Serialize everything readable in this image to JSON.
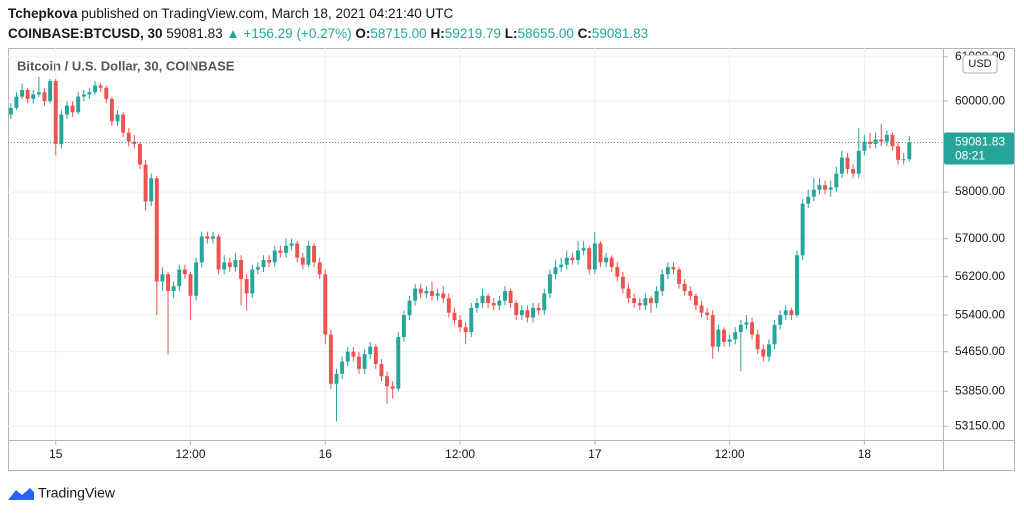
{
  "header": {
    "author": "Tchepkova",
    "published": "published on TradingView.com, March 18, 2021 04:21:40 UTC",
    "symbol": "COINBASE:BTCUSD, 30",
    "last": "59081.83",
    "change": "+156.29 (+0.27%)",
    "o_label": "O:",
    "o": "58715.00",
    "h_label": "H:",
    "h": "59219.79",
    "l_label": "L:",
    "l": "58655.00",
    "c_label": "C:",
    "c": "59081.83"
  },
  "footer": {
    "brand": "TradingView"
  },
  "chart_data": {
    "type": "candlestick",
    "title": "Bitcoin / U.S. Dollar, 30, COINBASE",
    "currency": "USD",
    "last_price_label": "59081.83",
    "countdown": "08:21",
    "up_color": "#26a69a",
    "down_color": "#ef5350",
    "log": true,
    "grid": true,
    "ylim": [
      52880,
      61200
    ],
    "yticks": [
      {
        "value": 61000,
        "label": "61000.00"
      },
      {
        "value": 60000,
        "label": "60000.00"
      },
      {
        "value": 58000,
        "label": "58000.00"
      },
      {
        "value": 57000,
        "label": "57000.00"
      },
      {
        "value": 56200,
        "label": "56200.00"
      },
      {
        "value": 55400,
        "label": "55400.00"
      },
      {
        "value": 54650,
        "label": "54650.00"
      },
      {
        "value": 53850,
        "label": "53850.00"
      },
      {
        "value": 53150,
        "label": "53150.00"
      }
    ],
    "xlim": [
      -0.5,
      166
    ],
    "xticks": [
      {
        "value": 8,
        "label": "15"
      },
      {
        "value": 32,
        "label": "12:00"
      },
      {
        "value": 56,
        "label": "16"
      },
      {
        "value": 80,
        "label": "12:00"
      },
      {
        "value": 104,
        "label": "17"
      },
      {
        "value": 128,
        "label": "12:00"
      },
      {
        "value": 152,
        "label": "18"
      }
    ],
    "candles": [
      [
        59700,
        59950,
        59600,
        59850
      ],
      [
        59850,
        60200,
        59800,
        60100
      ],
      [
        60100,
        60400,
        60050,
        60250
      ],
      [
        60250,
        60300,
        59950,
        60050
      ],
      [
        60050,
        60250,
        59950,
        60150
      ],
      [
        60150,
        60550,
        60100,
        60200
      ],
      [
        60200,
        60300,
        59900,
        60000
      ],
      [
        60000,
        60500,
        59950,
        60450
      ],
      [
        60450,
        60500,
        58800,
        59050
      ],
      [
        59050,
        59800,
        58950,
        59700
      ],
      [
        59700,
        60000,
        59600,
        59900
      ],
      [
        59900,
        60000,
        59650,
        59750
      ],
      [
        59750,
        60200,
        59700,
        60100
      ],
      [
        60100,
        60250,
        60000,
        60150
      ],
      [
        60150,
        60300,
        60050,
        60200
      ],
      [
        60200,
        60450,
        60150,
        60350
      ],
      [
        60350,
        60400,
        60200,
        60300
      ],
      [
        60300,
        60350,
        59950,
        60050
      ],
      [
        60050,
        60100,
        59450,
        59550
      ],
      [
        59550,
        59800,
        59450,
        59700
      ],
      [
        59700,
        59750,
        59200,
        59300
      ],
      [
        59300,
        59400,
        59000,
        59100
      ],
      [
        59100,
        59250,
        58950,
        59050
      ],
      [
        59050,
        59100,
        58500,
        58600
      ],
      [
        58600,
        58700,
        57600,
        57800
      ],
      [
        57800,
        58400,
        57700,
        58300
      ],
      [
        58300,
        58350,
        55400,
        56100
      ],
      [
        56100,
        56400,
        55900,
        56250
      ],
      [
        56250,
        56300,
        54600,
        55900
      ],
      [
        55900,
        56100,
        55750,
        56000
      ],
      [
        56000,
        56450,
        55900,
        56350
      ],
      [
        56350,
        56450,
        56150,
        56250
      ],
      [
        56250,
        56300,
        55300,
        55800
      ],
      [
        55800,
        56600,
        55700,
        56500
      ],
      [
        56500,
        57150,
        56400,
        57050
      ],
      [
        57050,
        57150,
        56900,
        57000
      ],
      [
        57000,
        57150,
        56900,
        57050
      ],
      [
        57050,
        57100,
        56250,
        56350
      ],
      [
        56350,
        56650,
        56250,
        56500
      ],
      [
        56500,
        56600,
        56300,
        56400
      ],
      [
        56400,
        56700,
        56300,
        56550
      ],
      [
        56550,
        56650,
        55600,
        56150
      ],
      [
        56150,
        56250,
        55500,
        55850
      ],
      [
        55850,
        56450,
        55750,
        56350
      ],
      [
        56350,
        56500,
        56250,
        56400
      ],
      [
        56400,
        56650,
        56300,
        56550
      ],
      [
        56550,
        56650,
        56400,
        56500
      ],
      [
        56500,
        56850,
        56400,
        56750
      ],
      [
        56750,
        56850,
        56600,
        56700
      ],
      [
        56700,
        57000,
        56600,
        56850
      ],
      [
        56850,
        57000,
        56750,
        56900
      ],
      [
        56900,
        56950,
        56500,
        56600
      ],
      [
        56600,
        56700,
        56350,
        56450
      ],
      [
        56450,
        56950,
        56400,
        56850
      ],
      [
        56850,
        56900,
        56400,
        56500
      ],
      [
        56500,
        56600,
        56150,
        56250
      ],
      [
        56250,
        56350,
        54800,
        55000
      ],
      [
        55000,
        55100,
        53900,
        54000
      ],
      [
        54000,
        54300,
        53250,
        54200
      ],
      [
        54200,
        54550,
        54100,
        54450
      ],
      [
        54450,
        54750,
        54350,
        54650
      ],
      [
        54650,
        54750,
        54450,
        54550
      ],
      [
        54550,
        54650,
        54200,
        54300
      ],
      [
        54300,
        54700,
        54200,
        54600
      ],
      [
        54600,
        54850,
        54500,
        54750
      ],
      [
        54750,
        54800,
        54300,
        54400
      ],
      [
        54400,
        54500,
        54050,
        54150
      ],
      [
        54150,
        54250,
        53600,
        53950
      ],
      [
        53950,
        54050,
        53700,
        53900
      ],
      [
        53900,
        55050,
        53850,
        54950
      ],
      [
        54950,
        55500,
        54850,
        55400
      ],
      [
        55400,
        55800,
        55300,
        55700
      ],
      [
        55700,
        56050,
        55600,
        55950
      ],
      [
        55950,
        56050,
        55750,
        55850
      ],
      [
        55850,
        56000,
        55750,
        55900
      ],
      [
        55900,
        56100,
        55700,
        55800
      ],
      [
        55800,
        55950,
        55700,
        55850
      ],
      [
        55850,
        56000,
        55650,
        55750
      ],
      [
        55750,
        55850,
        55350,
        55450
      ],
      [
        55450,
        55550,
        55200,
        55300
      ],
      [
        55300,
        55400,
        55050,
        55150
      ],
      [
        55150,
        55250,
        54800,
        55050
      ],
      [
        55050,
        55650,
        54950,
        55550
      ],
      [
        55550,
        55750,
        55450,
        55650
      ],
      [
        55650,
        55950,
        55550,
        55800
      ],
      [
        55800,
        55850,
        55550,
        55650
      ],
      [
        55650,
        55750,
        55500,
        55600
      ],
      [
        55600,
        55800,
        55500,
        55700
      ],
      [
        55700,
        56000,
        55600,
        55900
      ],
      [
        55900,
        55950,
        55550,
        55650
      ],
      [
        55650,
        55700,
        55300,
        55400
      ],
      [
        55400,
        55600,
        55300,
        55500
      ],
      [
        55500,
        55600,
        55250,
        55350
      ],
      [
        55350,
        55650,
        55250,
        55550
      ],
      [
        55550,
        55650,
        55400,
        55500
      ],
      [
        55500,
        55950,
        55400,
        55850
      ],
      [
        55850,
        56350,
        55750,
        56250
      ],
      [
        56250,
        56550,
        56150,
        56400
      ],
      [
        56400,
        56600,
        56300,
        56450
      ],
      [
        56450,
        56750,
        56350,
        56600
      ],
      [
        56600,
        56700,
        56450,
        56550
      ],
      [
        56550,
        56950,
        56450,
        56750
      ],
      [
        56750,
        56950,
        56650,
        56800
      ],
      [
        56800,
        56850,
        56250,
        56350
      ],
      [
        56350,
        57150,
        56250,
        56900
      ],
      [
        56900,
        56950,
        56400,
        56500
      ],
      [
        56500,
        56700,
        56400,
        56600
      ],
      [
        56600,
        56650,
        56300,
        56400
      ],
      [
        56400,
        56500,
        56100,
        56200
      ],
      [
        56200,
        56300,
        55850,
        55950
      ],
      [
        55950,
        56050,
        55650,
        55750
      ],
      [
        55750,
        55850,
        55550,
        55650
      ],
      [
        55650,
        55750,
        55500,
        55600
      ],
      [
        55600,
        55850,
        55500,
        55750
      ],
      [
        55750,
        55800,
        55450,
        55650
      ],
      [
        55650,
        56000,
        55550,
        55900
      ],
      [
        55900,
        56350,
        55800,
        56250
      ],
      [
        56250,
        56500,
        56150,
        56400
      ],
      [
        56400,
        56500,
        56250,
        56350
      ],
      [
        56350,
        56400,
        55950,
        56050
      ],
      [
        56050,
        56150,
        55800,
        55900
      ],
      [
        55900,
        56000,
        55700,
        55800
      ],
      [
        55800,
        55850,
        55500,
        55600
      ],
      [
        55600,
        55700,
        55350,
        55450
      ],
      [
        55450,
        55550,
        55300,
        55400
      ],
      [
        55400,
        55500,
        54500,
        54750
      ],
      [
        54750,
        55200,
        54650,
        55100
      ],
      [
        55100,
        55150,
        54750,
        54850
      ],
      [
        54850,
        55000,
        54750,
        54900
      ],
      [
        54900,
        55150,
        54800,
        55050
      ],
      [
        55050,
        55300,
        54250,
        55200
      ],
      [
        55200,
        55400,
        55100,
        55250
      ],
      [
        55250,
        55350,
        54900,
        55000
      ],
      [
        55000,
        55100,
        54600,
        54700
      ],
      [
        54700,
        54800,
        54450,
        54550
      ],
      [
        54550,
        54900,
        54450,
        54800
      ],
      [
        54800,
        55300,
        54700,
        55200
      ],
      [
        55200,
        55500,
        55100,
        55400
      ],
      [
        55400,
        55600,
        55300,
        55500
      ],
      [
        55500,
        55550,
        55300,
        55400
      ],
      [
        55400,
        56750,
        55350,
        56650
      ],
      [
        56650,
        57850,
        56550,
        57750
      ],
      [
        57750,
        58050,
        57650,
        57900
      ],
      [
        57900,
        58300,
        57800,
        58050
      ],
      [
        58050,
        58300,
        57950,
        58150
      ],
      [
        58150,
        58250,
        57950,
        58050
      ],
      [
        58050,
        58250,
        57900,
        58100
      ],
      [
        58100,
        58550,
        58000,
        58400
      ],
      [
        58400,
        58900,
        58300,
        58750
      ],
      [
        58750,
        58850,
        58400,
        58500
      ],
      [
        58500,
        58600,
        58300,
        58400
      ],
      [
        58400,
        59400,
        58300,
        58900
      ],
      [
        58900,
        59250,
        58800,
        59100
      ],
      [
        59100,
        59300,
        58950,
        59050
      ],
      [
        59050,
        59300,
        58950,
        59150
      ],
      [
        59150,
        59500,
        59000,
        59100
      ],
      [
        59100,
        59350,
        59000,
        59250
      ],
      [
        59250,
        59300,
        58900,
        59000
      ],
      [
        59000,
        59100,
        58600,
        58700
      ],
      [
        58700,
        58850,
        58600,
        58715
      ],
      [
        58715,
        59219.79,
        58655,
        59081.83
      ]
    ]
  }
}
